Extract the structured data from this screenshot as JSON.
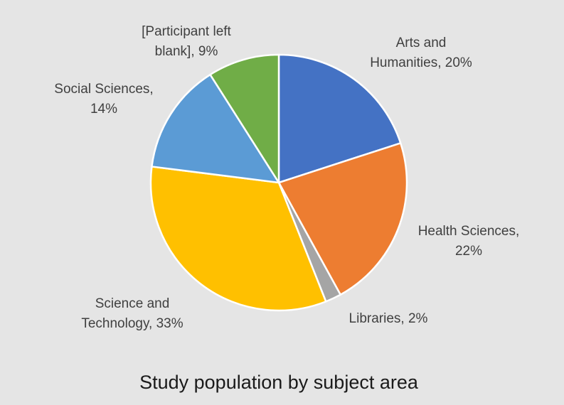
{
  "chart_data": {
    "type": "pie",
    "title": "Study population by subject area",
    "start_angle_deg": 0,
    "direction": "clockwise",
    "legend": "none",
    "slices": [
      {
        "name": "Arts and Humanities",
        "value": 20,
        "label_lines": [
          "Arts and",
          "Humanities, 20%"
        ],
        "color": "#4472c4"
      },
      {
        "name": "Health Sciences",
        "value": 22,
        "label_lines": [
          "Health Sciences,",
          "22%"
        ],
        "color": "#ed7d31"
      },
      {
        "name": "Libraries",
        "value": 2,
        "label_lines": [
          "Libraries, 2%"
        ],
        "color": "#a5a5a5"
      },
      {
        "name": "Science and Technology",
        "value": 33,
        "label_lines": [
          "Science and",
          "Technology, 33%"
        ],
        "color": "#ffc000"
      },
      {
        "name": "Social Sciences",
        "value": 14,
        "label_lines": [
          "Social Sciences,",
          "14%"
        ],
        "color": "#5b9bd5"
      },
      {
        "name": "[Participant left blank]",
        "value": 9,
        "label_lines": [
          "[Participant left",
          "blank], 9%"
        ],
        "color": "#70ad47"
      }
    ]
  }
}
